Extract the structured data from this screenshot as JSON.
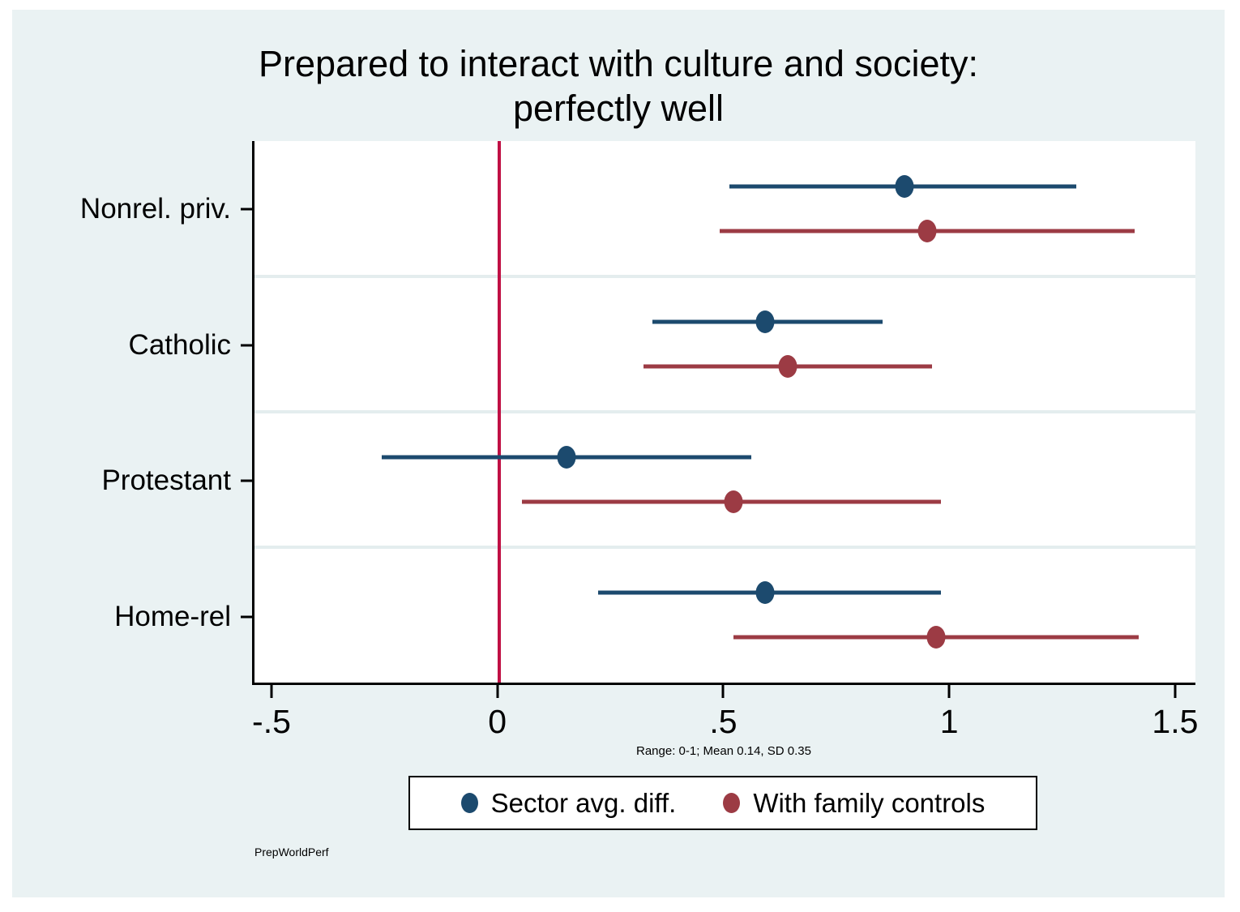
{
  "page": {
    "background": "#ffffff",
    "canvas_color": "#eaf2f3"
  },
  "chart_data": {
    "type": "scatter",
    "subtype": "coefficient-plot-with-confidence-intervals",
    "title_lines": [
      "Prepared to interact with culture and society:",
      "perfectly well"
    ],
    "title": "Prepared to interact with culture and society: perfectly well",
    "categories": [
      "Nonrel. priv.",
      "Catholic",
      "Protestant",
      "Home-rel"
    ],
    "series": [
      {
        "name": "Sector avg. diff.",
        "color": "#1c4a6e",
        "estimates": [
          0.9,
          0.59,
          0.15,
          0.59
        ],
        "ci_low": [
          0.51,
          0.34,
          -0.26,
          0.22
        ],
        "ci_high": [
          1.28,
          0.85,
          0.56,
          0.98
        ]
      },
      {
        "name": "With family controls",
        "color": "#9c3b44",
        "estimates": [
          0.95,
          0.64,
          0.52,
          0.97
        ],
        "ci_low": [
          0.49,
          0.32,
          0.05,
          0.52
        ],
        "ci_high": [
          1.41,
          0.96,
          0.98,
          1.42
        ]
      }
    ],
    "x_ticks": [
      {
        "value": -0.5,
        "label": "-.5"
      },
      {
        "value": 0,
        "label": "0"
      },
      {
        "value": 0.5,
        "label": ".5"
      },
      {
        "value": 1,
        "label": "1"
      },
      {
        "value": 1.5,
        "label": "1.5"
      }
    ],
    "xlim": [
      -0.543,
      1.545
    ],
    "zero_line": {
      "value": 0,
      "color": "#c01044"
    },
    "gridlines": "light horizontal lines between category rows",
    "note": "Range: 0-1; Mean 0.14, SD 0.35",
    "caption": "PrepWorldPerf",
    "legend_position": "bottom-center"
  }
}
